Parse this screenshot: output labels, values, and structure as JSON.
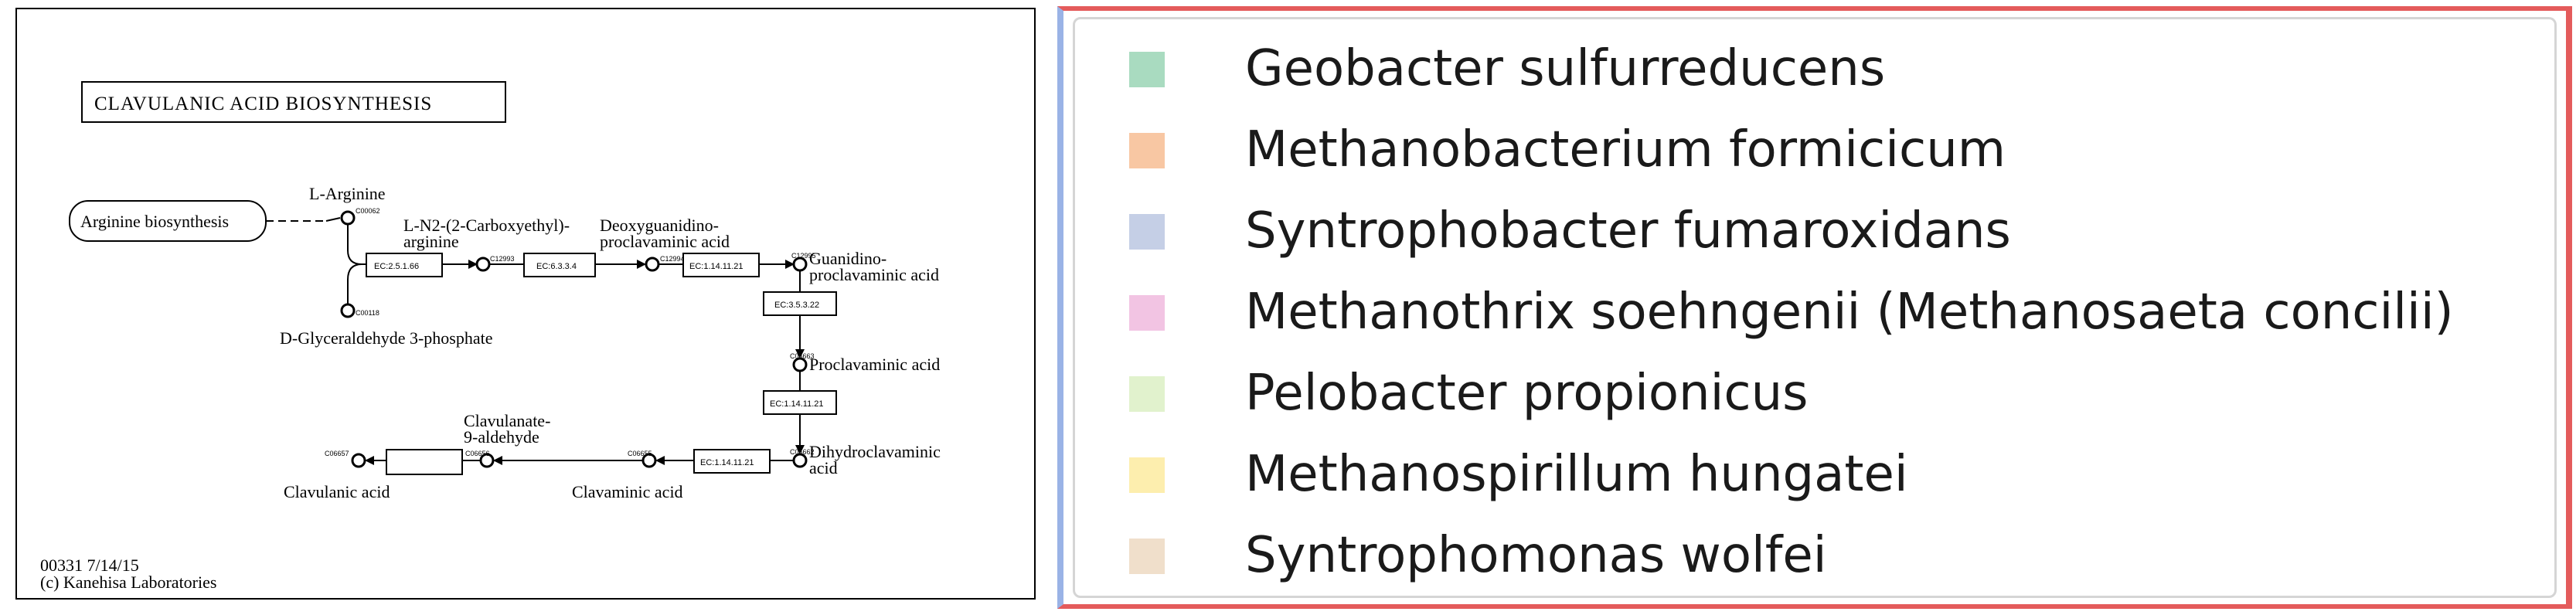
{
  "pathway": {
    "title": "CLAVULANIC ACID BIOSYNTHESIS",
    "map_link": "Arginine biosynthesis",
    "compounds": {
      "l_arginine": "L-Arginine",
      "carboxyethyl_line1": "L-N2-(2-Carboxyethyl)-",
      "carboxyethyl_line2": "arginine",
      "deoxy_line1": "Deoxyguanidino-",
      "deoxy_line2": "proclavaminic acid",
      "guanidino_line1": "Guanidino-",
      "guanidino_line2": "proclavaminic acid",
      "proclavaminic": "Proclavaminic acid",
      "dihydro_line1": "Dihydroclavaminic",
      "dihydro_line2": "acid",
      "clavaminic": "Clavaminic acid",
      "clavulanate_line1": "Clavulanate-",
      "clavulanate_line2": "9-aldehyde",
      "clavulanic": "Clavulanic acid",
      "glyceraldehyde": "D-Glyceraldehyde 3-phosphate"
    },
    "enzymes": {
      "ec1": "EC:2.5.1.66",
      "ec2": "EC:6.3.3.4",
      "ec3": "EC:1.14.11.21",
      "ec4": "EC:3.5.3.22",
      "ec5": "EC:1.14.11.21",
      "ec6": "EC:1.14.11.21"
    },
    "compound_ids": {
      "c1": "C00062",
      "c2": "C00118",
      "c3": "C12993",
      "c4": "C12994",
      "c5": "C12995",
      "c6": "C06663",
      "c7": "C06662",
      "c8": "C06655",
      "c9": "C06656",
      "c10": "C06657"
    },
    "footer_line1": "00331 7/14/15",
    "footer_line2": "(c) Kanehisa Laboratories"
  },
  "legend": {
    "items": [
      {
        "label": "Geobacter sulfurreducens",
        "color": "#a9dbc0"
      },
      {
        "label": "Methanobacterium formicicum",
        "color": "#f8c7a3"
      },
      {
        "label": "Syntrophobacter fumaroxidans",
        "color": "#c5cfe6"
      },
      {
        "label": "Methanothrix soehngenii (Methanosaeta concilii)",
        "color": "#f2c4e3"
      },
      {
        "label": "Pelobacter propionicus",
        "color": "#e1f2cd"
      },
      {
        "label": "Methanospirillum hungatei",
        "color": "#fdeeae"
      },
      {
        "label": "Syntrophomonas wolfei",
        "color": "#f0dfcb"
      }
    ]
  }
}
